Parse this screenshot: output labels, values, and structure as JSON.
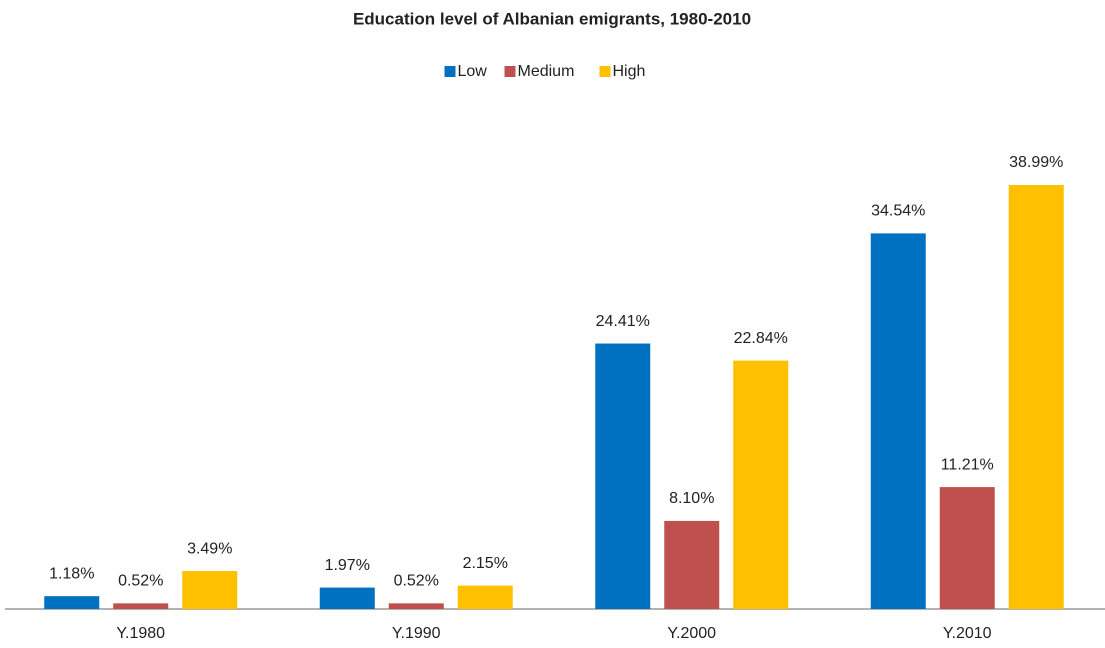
{
  "chart_data": {
    "type": "bar",
    "title": "Education level of Albanian emigrants, 1980-2010",
    "categories": [
      "Y.1980",
      "Y.1990",
      "Y.2000",
      "Y.2010"
    ],
    "series": [
      {
        "name": "Low",
        "color": "#0070c0",
        "values": [
          1.18,
          1.97,
          24.41,
          34.54
        ],
        "value_labels": [
          "1.18%",
          "1.97%",
          "24.41%",
          "34.54%"
        ]
      },
      {
        "name": "Medium",
        "color": "#c0504d",
        "values": [
          0.52,
          0.52,
          8.1,
          11.21
        ],
        "value_labels": [
          "0.52%",
          "0.52%",
          "8.10%",
          "11.21%"
        ]
      },
      {
        "name": "High",
        "color": "#ffc000",
        "values": [
          3.49,
          2.15,
          22.84,
          38.99
        ],
        "value_labels": [
          "3.49%",
          "2.15%",
          "22.84%",
          "38.99%"
        ]
      }
    ],
    "legend": "top"
  }
}
